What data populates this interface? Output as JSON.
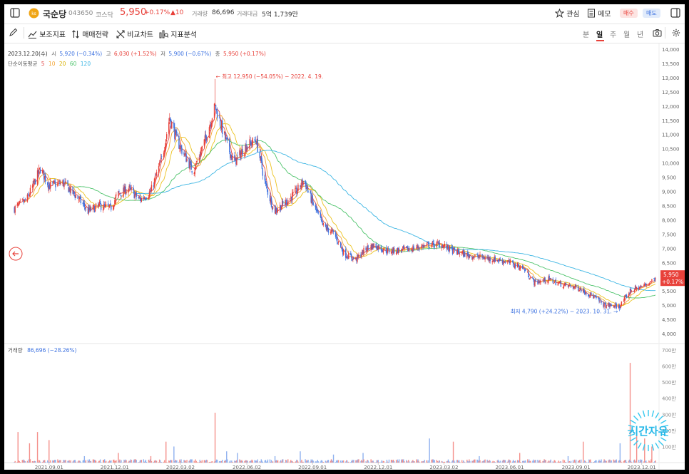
{
  "header": {
    "stock_name": "국순당",
    "code": "043650",
    "market": "코스닥",
    "price": "5,950",
    "change_pct": "+0.17%",
    "change_abs": "▲10",
    "volume_label": "거래량",
    "volume": "86,696",
    "amount_label": "거래대금",
    "amount": "5억 1,739만",
    "watch_label": "관심",
    "memo_label": "메모",
    "buy_label": "매수",
    "sell_label": "매도"
  },
  "toolbar": {
    "indicators": "보조지표",
    "strategy": "매매전략",
    "compare": "비교차트",
    "analysis": "지표분석",
    "periods": [
      "분",
      "일",
      "주",
      "월",
      "년"
    ],
    "active_period": "일"
  },
  "info": {
    "date": "2023.12.20(수)",
    "open_label": "시",
    "open": "5,920 (−0.34%)",
    "high_label": "고",
    "high": "6,030 (+1.52%)",
    "low_label": "저",
    "low": "5,900 (−0.67%)",
    "close_label": "종",
    "close": "5,950 (+0.17%)",
    "ma_label": "단순이동평균",
    "ma_periods": [
      "5",
      "10",
      "20",
      "60",
      "120"
    ]
  },
  "annotations": {
    "high": "← 최고 12,950 (−54.05%) − 2022. 4. 19.",
    "low": "최저 4,790 (+24.22%) − 2023. 10. 31. →"
  },
  "current_price_tag": {
    "price": "5,950",
    "change": "+0.17%"
  },
  "volume_info": {
    "label": "거래량",
    "value": "86,696 (−28.26%)"
  },
  "watermark": "시간자유",
  "colors": {
    "up": "#e8413a",
    "down": "#3d72e0",
    "ma5": "#e24a4a",
    "ma10": "#f3a433",
    "ma20": "#ecc21c",
    "ma60": "#4cc36a",
    "ma120": "#3bb5e3",
    "brand": "#f0a515"
  },
  "chart_data": {
    "type": "candlestick",
    "price_axis": {
      "ylim": [
        4000,
        14000
      ],
      "ticks": [
        "4,000",
        "4,500",
        "5,000",
        "5,500",
        "6,000",
        "6,500",
        "7,000",
        "7,500",
        "8,000",
        "8,500",
        "9,000",
        "9,500",
        "10,000",
        "10,500",
        "11,000",
        "11,500",
        "12,000",
        "12,500",
        "13,000",
        "13,500",
        "14,000"
      ]
    },
    "volume_axis": {
      "ylim": [
        0,
        700
      ],
      "unit": "만",
      "ticks": [
        "100만",
        "200만",
        "300만",
        "400만",
        "500만",
        "600만",
        "700만"
      ]
    },
    "x_ticks": [
      "2021.09.01",
      "2021.12.01",
      "2022.03.02",
      "2022.06.02",
      "2022.09.01",
      "2022.12.01",
      "2023.03.02",
      "2023.06.01",
      "2023.09.01",
      "2023.12.01"
    ],
    "close_path": [
      [
        "2021-07-15",
        8400
      ],
      [
        "2021-08-01",
        8700
      ],
      [
        "2021-08-20",
        9800
      ],
      [
        "2021-09-01",
        9200
      ],
      [
        "2021-09-20",
        9300
      ],
      [
        "2021-10-10",
        8800
      ],
      [
        "2021-10-25",
        8300
      ],
      [
        "2021-11-10",
        8500
      ],
      [
        "2021-11-25",
        8400
      ],
      [
        "2021-12-05",
        8900
      ],
      [
        "2021-12-20",
        9100
      ],
      [
        "2022-01-05",
        8700
      ],
      [
        "2022-01-20",
        9000
      ],
      [
        "2022-02-05",
        10200
      ],
      [
        "2022-02-15",
        11600
      ],
      [
        "2022-02-25",
        10800
      ],
      [
        "2022-03-05",
        10400
      ],
      [
        "2022-03-20",
        9700
      ],
      [
        "2022-04-05",
        10800
      ],
      [
        "2022-04-19",
        12000
      ],
      [
        "2022-05-01",
        11000
      ],
      [
        "2022-05-15",
        10000
      ],
      [
        "2022-06-01",
        10600
      ],
      [
        "2022-06-15",
        10800
      ],
      [
        "2022-06-28",
        9200
      ],
      [
        "2022-07-10",
        8300
      ],
      [
        "2022-07-25",
        8600
      ],
      [
        "2022-08-10",
        9000
      ],
      [
        "2022-08-20",
        9400
      ],
      [
        "2022-09-01",
        8600
      ],
      [
        "2022-09-15",
        7800
      ],
      [
        "2022-10-01",
        7500
      ],
      [
        "2022-10-15",
        6800
      ],
      [
        "2022-10-31",
        6600
      ],
      [
        "2022-11-15",
        7000
      ],
      [
        "2022-11-25",
        7100
      ],
      [
        "2022-12-15",
        6900
      ],
      [
        "2023-01-10",
        6950
      ],
      [
        "2023-02-05",
        7100
      ],
      [
        "2023-02-25",
        7150
      ],
      [
        "2023-03-15",
        6900
      ],
      [
        "2023-04-05",
        6750
      ],
      [
        "2023-05-01",
        6650
      ],
      [
        "2023-05-25",
        6550
      ],
      [
        "2023-06-20",
        6300
      ],
      [
        "2023-07-05",
        5800
      ],
      [
        "2023-07-25",
        5900
      ],
      [
        "2023-08-15",
        5700
      ],
      [
        "2023-09-05",
        5600
      ],
      [
        "2023-09-25",
        5300
      ],
      [
        "2023-10-10",
        5000
      ],
      [
        "2023-10-31",
        4950
      ],
      [
        "2023-11-15",
        5500
      ],
      [
        "2023-12-05",
        5700
      ],
      [
        "2023-12-20",
        5950
      ]
    ],
    "high": {
      "value": 12950,
      "date": "2022-04-19"
    },
    "low": {
      "value": 4790,
      "date": "2023-10-31"
    },
    "current": 5950,
    "moving_averages": [
      "MA5",
      "MA10",
      "MA20",
      "MA60",
      "MA120"
    ],
    "volume_spikes": [
      [
        "2021-07-20",
        190
      ],
      [
        "2021-08-05",
        120
      ],
      [
        "2021-08-15",
        190
      ],
      [
        "2021-09-01",
        140
      ],
      [
        "2021-10-20",
        40
      ],
      [
        "2021-12-05",
        60
      ],
      [
        "2022-01-20",
        40
      ],
      [
        "2022-02-10",
        130
      ],
      [
        "2022-02-20",
        100
      ],
      [
        "2022-04-19",
        310
      ],
      [
        "2022-05-05",
        70
      ],
      [
        "2022-05-20",
        60
      ],
      [
        "2022-07-10",
        40
      ],
      [
        "2022-08-15",
        70
      ],
      [
        "2022-10-01",
        50
      ],
      [
        "2022-11-10",
        60
      ],
      [
        "2023-02-10",
        150
      ],
      [
        "2023-03-15",
        130
      ],
      [
        "2023-04-20",
        40
      ],
      [
        "2023-06-15",
        60
      ],
      [
        "2023-08-20",
        40
      ],
      [
        "2023-09-10",
        130
      ],
      [
        "2023-11-01",
        120
      ],
      [
        "2023-11-15",
        620
      ],
      [
        "2023-11-25",
        180
      ],
      [
        "2023-12-05",
        150
      ],
      [
        "2023-12-15",
        100
      ]
    ]
  }
}
